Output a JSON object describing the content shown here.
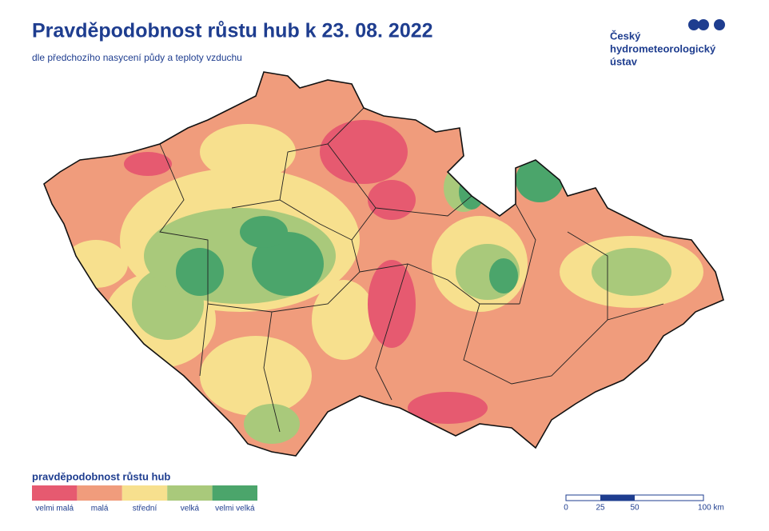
{
  "header": {
    "title": "Pravděpodobnost růstu hub k 23. 08. 2022",
    "subtitle": "dle předchozího nasycení půdy a teploty vzduchu"
  },
  "logo": {
    "lines": [
      "Český",
      "hydrometeorologický",
      "ústav"
    ]
  },
  "legend": {
    "title": "pravděpodobnost růstu hub",
    "items": [
      {
        "label": "velmi malá",
        "color": "#e65a70"
      },
      {
        "label": "malá",
        "color": "#f09c7c"
      },
      {
        "label": "střední",
        "color": "#f7e08e"
      },
      {
        "label": "velká",
        "color": "#a9c97b"
      },
      {
        "label": "velmi velká",
        "color": "#4ba56b"
      }
    ]
  },
  "scale_bar": {
    "labels": [
      "0",
      "25",
      "50",
      "100 km"
    ]
  }
}
